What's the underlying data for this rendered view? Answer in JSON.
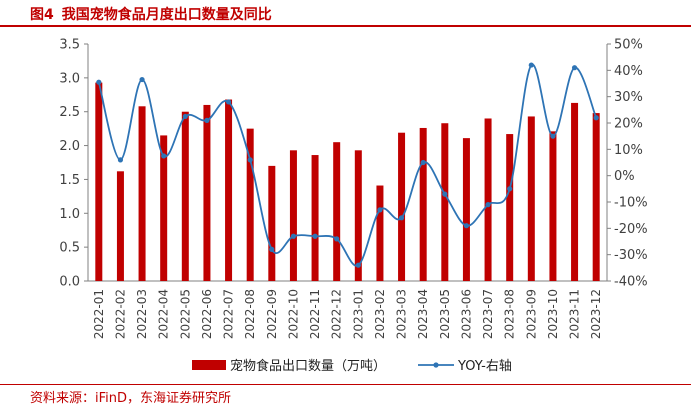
{
  "figure": {
    "number": "图4",
    "title": "我国宠物食品月度出口数量及同比",
    "source": "资料来源：iFinD，东海证券研究所"
  },
  "colors": {
    "bar": "#c00000",
    "line": "#2e74b5",
    "title": "#c00000"
  },
  "chart_data": {
    "type": "bar",
    "categories": [
      "2022-01",
      "2022-02",
      "2022-03",
      "2022-04",
      "2022-05",
      "2022-06",
      "2022-07",
      "2022-08",
      "2022-09",
      "2022-10",
      "2022-11",
      "2022-12",
      "2023-01",
      "2023-02",
      "2023-03",
      "2023-04",
      "2023-05",
      "2023-06",
      "2023-07",
      "2023-08",
      "2023-09",
      "2023-10",
      "2023-11",
      "2023-12"
    ],
    "series": [
      {
        "name": "宠物食品出口数量（万吨）",
        "type": "bar",
        "axis": "left",
        "values": [
          2.93,
          1.62,
          2.58,
          2.15,
          2.5,
          2.6,
          2.68,
          2.25,
          1.7,
          1.93,
          1.86,
          2.05,
          1.93,
          1.41,
          2.19,
          2.26,
          2.33,
          2.11,
          2.4,
          2.17,
          2.43,
          2.21,
          2.63,
          2.48
        ]
      },
      {
        "name": "YOY-右轴",
        "type": "line",
        "axis": "right",
        "values": [
          35.5,
          6.0,
          36.5,
          7.5,
          22.5,
          21.0,
          28.0,
          6.0,
          -28.0,
          -23.0,
          -23.0,
          -24.0,
          -34.0,
          -13.0,
          -16.0,
          5.0,
          -7.0,
          -19.0,
          -11.0,
          -5.0,
          42.0,
          15.0,
          41.0,
          22.0
        ]
      }
    ],
    "left_axis": {
      "min": 0,
      "max": 3.5,
      "ticks": [
        "0.0",
        "0.5",
        "1.0",
        "1.5",
        "2.0",
        "2.5",
        "3.0",
        "3.5"
      ]
    },
    "right_axis": {
      "min": -40,
      "max": 50,
      "ticks": [
        "-40%",
        "-30%",
        "-20%",
        "-10%",
        "0%",
        "10%",
        "20%",
        "30%",
        "40%",
        "50%"
      ]
    },
    "grid": false,
    "legend_position": "bottom"
  }
}
